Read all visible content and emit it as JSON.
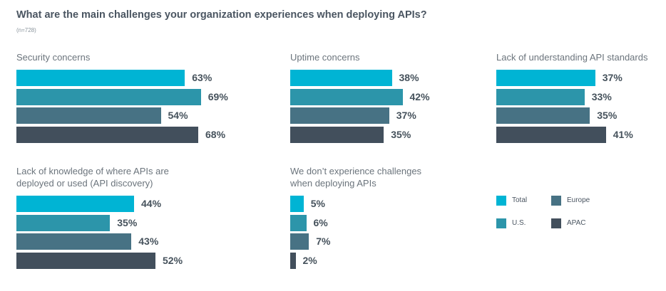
{
  "chart_data": {
    "type": "bar",
    "orientation": "horizontal",
    "title": "What are the main challenges your organization experiences when deploying APIs?",
    "subtitle": "(n=728)",
    "unit": "%",
    "xlim": [
      0,
      100
    ],
    "grid": false,
    "legend_placement": "bottom-right",
    "series": [
      {
        "name": "Total",
        "color": "#00b4d4"
      },
      {
        "name": "U.S.",
        "color": "#2c95aa"
      },
      {
        "name": "Europe",
        "color": "#477284"
      },
      {
        "name": "APAC",
        "color": "#424f5c"
      }
    ],
    "groups": [
      {
        "label_lines": [
          "Security concerns"
        ],
        "values": [
          63,
          69,
          54,
          68
        ],
        "labels": [
          "63%",
          "69%",
          "54%",
          "68%"
        ]
      },
      {
        "label_lines": [
          "Uptime concerns"
        ],
        "values": [
          38,
          42,
          37,
          35
        ],
        "labels": [
          "38%",
          "42%",
          "37%",
          "35%"
        ]
      },
      {
        "label_lines": [
          "Lack of understanding API standards"
        ],
        "values": [
          37,
          33,
          35,
          41
        ],
        "labels": [
          "37%",
          "33%",
          "35%",
          "41%"
        ]
      },
      {
        "label_lines": [
          "Lack of knowledge of where APIs are",
          "deployed or used (API discovery)"
        ],
        "values": [
          44,
          35,
          43,
          52
        ],
        "labels": [
          "44%",
          "35%",
          "43%",
          "52%"
        ]
      },
      {
        "label_lines": [
          "We don’t experience challenges",
          "when deploying APIs"
        ],
        "values": [
          5,
          6,
          7,
          2
        ],
        "labels": [
          "5%",
          "6%",
          "7%",
          "2%"
        ]
      }
    ]
  }
}
